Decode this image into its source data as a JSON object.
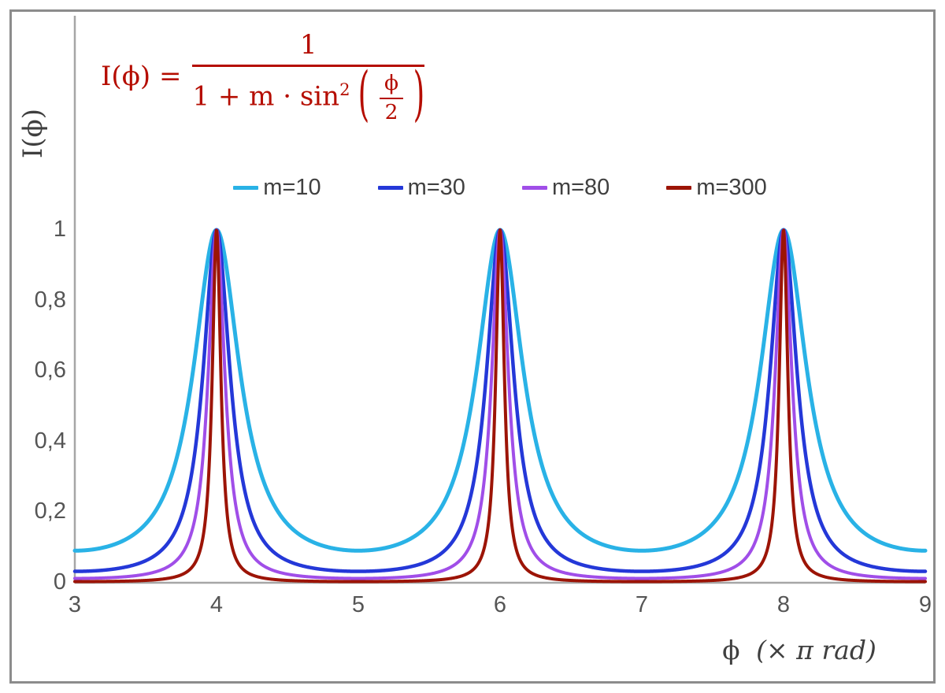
{
  "chart_data": {
    "type": "line",
    "title": "",
    "function": "I(x) = 1 / (1 + m * sin^2(pi*x/2)) with x in units of pi rad",
    "formula": {
      "lhs": "I(ϕ) =",
      "numerator": "1",
      "denominator_prefix": "1 + m · sin",
      "denominator_sup": "2",
      "open_paren": "(",
      "inner_numerator": "ϕ",
      "inner_denominator": "2",
      "close_paren": ")",
      "color": "#b50d00"
    },
    "ylabel": "I(ϕ)",
    "xlabel_phi": "ϕ",
    "xlabel_unit": "(× π rad)",
    "xlim": [
      3,
      9
    ],
    "ylim": [
      0,
      1
    ],
    "x_ticks": [
      {
        "value": 3,
        "label": "3"
      },
      {
        "value": 4,
        "label": "4"
      },
      {
        "value": 5,
        "label": "5"
      },
      {
        "value": 6,
        "label": "6"
      },
      {
        "value": 7,
        "label": "7"
      },
      {
        "value": 8,
        "label": "8"
      },
      {
        "value": 9,
        "label": "9"
      }
    ],
    "y_ticks": [
      {
        "value": 0,
        "label": "0"
      },
      {
        "value": 0.2,
        "label": "0,2"
      },
      {
        "value": 0.4,
        "label": "0,4"
      },
      {
        "value": 0.6,
        "label": "0,6"
      },
      {
        "value": 0.8,
        "label": "0,8"
      },
      {
        "value": 1,
        "label": "1"
      }
    ],
    "series": [
      {
        "label": "m=10",
        "m": 10,
        "color": "#29b2e6",
        "width": 5
      },
      {
        "label": "m=30",
        "m": 30,
        "color": "#2438d8",
        "width": 4.5
      },
      {
        "label": "m=80",
        "m": 80,
        "color": "#a04ee8",
        "width": 4
      },
      {
        "label": "m=300",
        "m": 300,
        "color": "#9c1406",
        "width": 4
      }
    ],
    "peaks_at_x": [
      4,
      6,
      8
    ],
    "grid": false,
    "legend_position": "top-center",
    "axis_color": "#a6a6a6",
    "tick_color": "#555555",
    "frame_color": "#8c8c8c"
  }
}
